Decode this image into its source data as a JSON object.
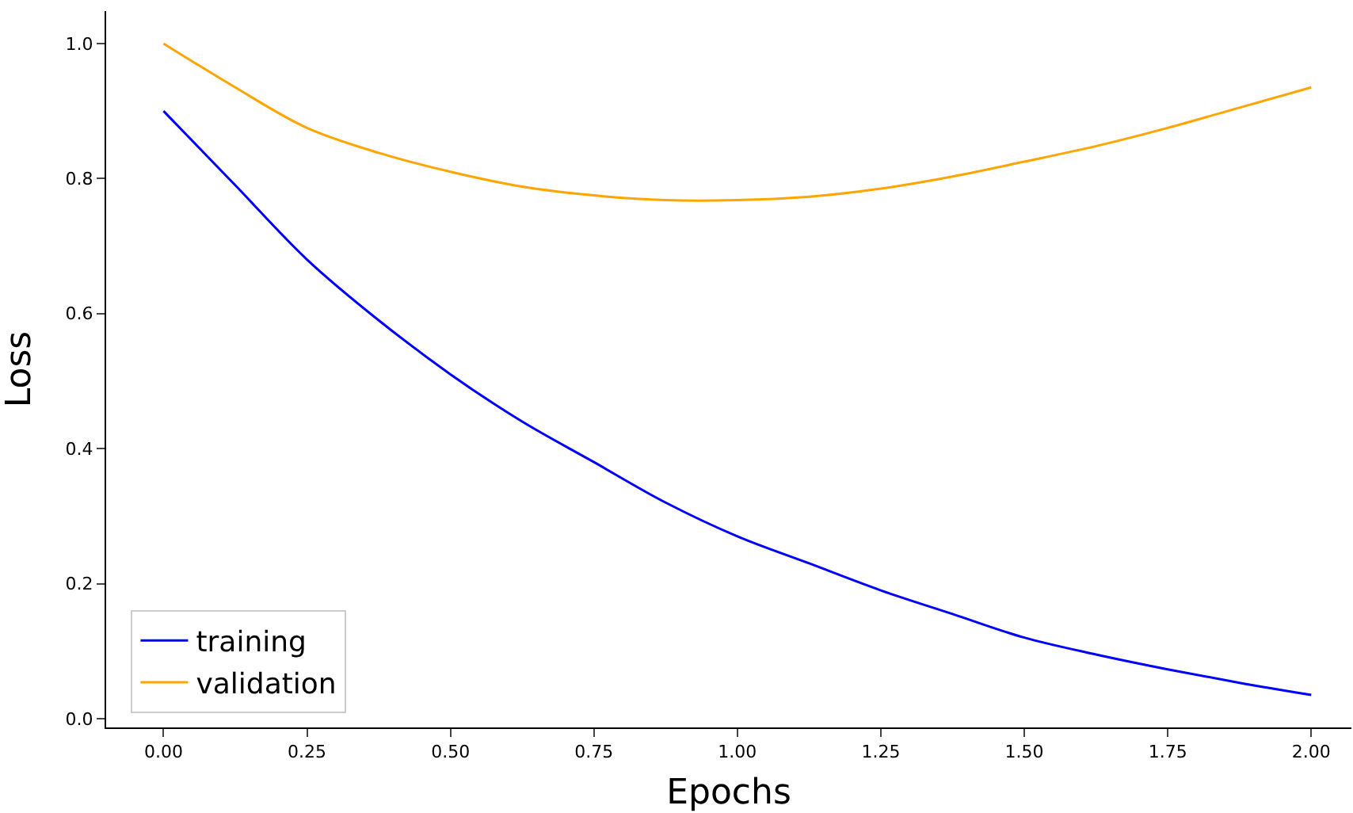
{
  "chart_data": {
    "type": "line",
    "xlabel": "Epochs",
    "ylabel": "Loss",
    "x": [
      0,
      0.125,
      0.25,
      0.375,
      0.5,
      0.625,
      0.75,
      0.875,
      1.0,
      1.125,
      1.25,
      1.375,
      1.5,
      1.625,
      1.75,
      1.875,
      2.0
    ],
    "series": [
      {
        "name": "training",
        "color": "#0000ff",
        "values": [
          0.9,
          0.79,
          0.68,
          0.59,
          0.51,
          0.44,
          0.38,
          0.32,
          0.27,
          0.23,
          0.19,
          0.155,
          0.12,
          0.095,
          0.073,
          0.053,
          0.035
        ]
      },
      {
        "name": "validation",
        "color": "#ffa500",
        "values": [
          1.0,
          0.935,
          0.875,
          0.838,
          0.81,
          0.788,
          0.775,
          0.768,
          0.768,
          0.773,
          0.785,
          0.803,
          0.825,
          0.848,
          0.875,
          0.905,
          0.935
        ]
      }
    ],
    "xlim": [
      -0.1,
      2.07
    ],
    "ylim": [
      -0.013,
      1.048
    ],
    "xticks": [
      {
        "value": 0,
        "label": "0.00"
      },
      {
        "value": 0.25,
        "label": "0.25"
      },
      {
        "value": 0.5,
        "label": "0.50"
      },
      {
        "value": 0.75,
        "label": "0.75"
      },
      {
        "value": 1,
        "label": "1.00"
      },
      {
        "value": 1.25,
        "label": "1.25"
      },
      {
        "value": 1.5,
        "label": "1.50"
      },
      {
        "value": 1.75,
        "label": "1.75"
      },
      {
        "value": 2,
        "label": "2.00"
      }
    ],
    "yticks": [
      {
        "value": 0,
        "label": "0.0"
      },
      {
        "value": 0.2,
        "label": "0.2"
      },
      {
        "value": 0.4,
        "label": "0.4"
      },
      {
        "value": 0.6,
        "label": "0.6"
      },
      {
        "value": 0.8,
        "label": "0.8"
      },
      {
        "value": 1,
        "label": "1.0"
      }
    ],
    "legend": "bottom left",
    "marker": "none",
    "line_style": "solid"
  }
}
